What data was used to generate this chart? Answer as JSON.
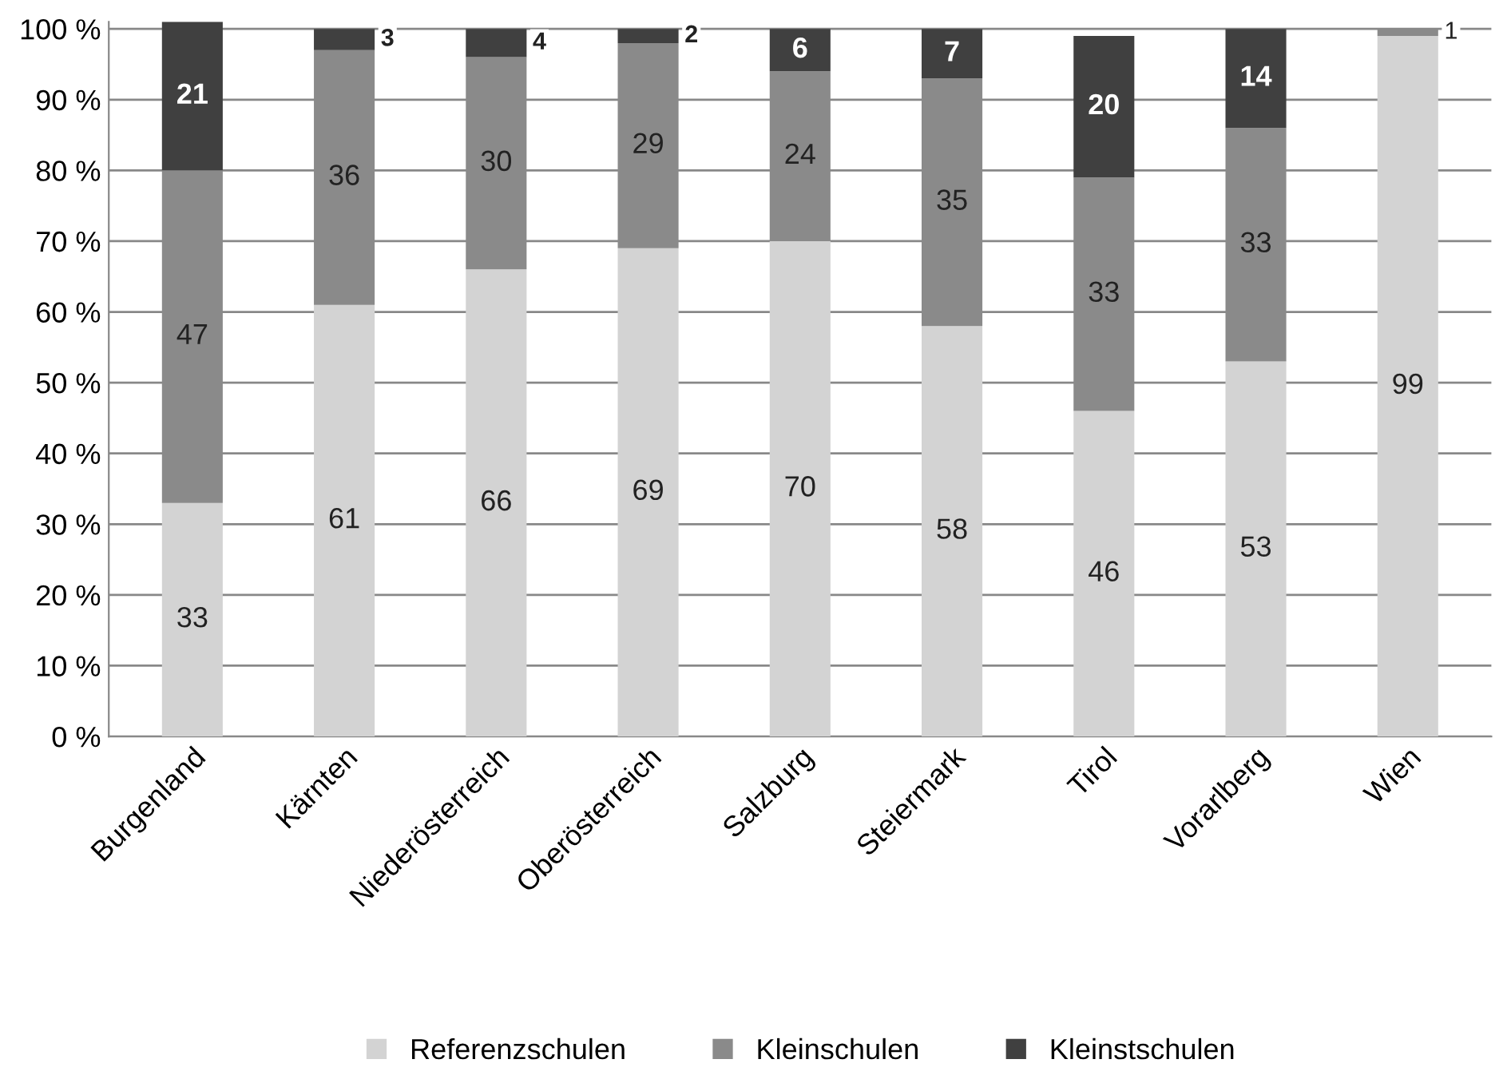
{
  "chart_data": {
    "type": "bar",
    "stacked": true,
    "data_labels": true,
    "categories": [
      "Burgenland",
      "Kärnten",
      "Niederösterreich",
      "Oberösterreich",
      "Salzburg",
      "Steiermark",
      "Tirol",
      "Vorarlberg",
      "Wien"
    ],
    "series": [
      {
        "name": "Referenzschulen",
        "color": "#d3d3d3",
        "values": [
          33,
          61,
          66,
          69,
          70,
          58,
          46,
          53,
          99
        ]
      },
      {
        "name": "Kleinschulen",
        "color": "#8a8a8a",
        "values": [
          47,
          36,
          30,
          29,
          24,
          35,
          33,
          33,
          1
        ]
      },
      {
        "name": "Kleinstschulen",
        "color": "#404040",
        "values": [
          21,
          3,
          4,
          2,
          6,
          7,
          20,
          14,
          null
        ]
      }
    ],
    "ylim": [
      0,
      101
    ],
    "yticks": [
      {
        "value": 0,
        "label": "0 %"
      },
      {
        "value": 10,
        "label": "10 %"
      },
      {
        "value": 20,
        "label": "20 %"
      },
      {
        "value": 30,
        "label": "30 %"
      },
      {
        "value": 40,
        "label": "40 %"
      },
      {
        "value": 50,
        "label": "50 %"
      },
      {
        "value": 60,
        "label": "60 %"
      },
      {
        "value": 70,
        "label": "70 %"
      },
      {
        "value": 80,
        "label": "80 %"
      },
      {
        "value": 90,
        "label": "90 %"
      },
      {
        "value": 100,
        "label": "100 %"
      }
    ],
    "grid": "y",
    "legend": "bottom"
  }
}
